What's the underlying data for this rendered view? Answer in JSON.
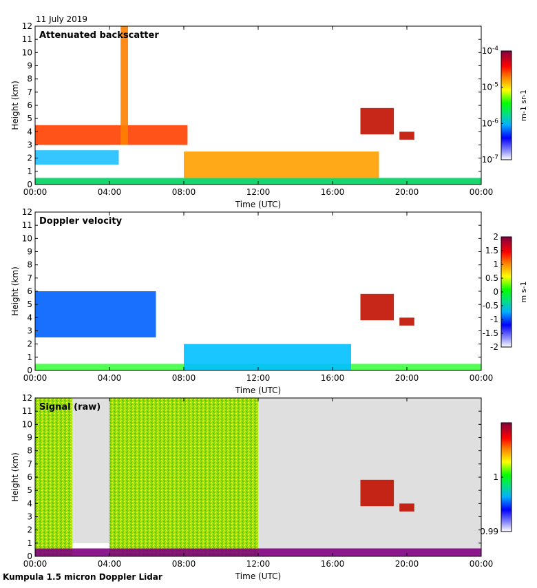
{
  "date_label": "11 July 2019",
  "footer_label": "Kumpula 1.5 micron Doppler Lidar",
  "colors": {
    "frame": "#000000",
    "no_signal_fill": "#dcdcdc",
    "low_signal": "#800080"
  },
  "chart_data": [
    {
      "type": "heatmap",
      "title": "Attenuated backscatter",
      "xlabel": "Time (UTC)",
      "ylabel": "Height (km)",
      "x_ticks": [
        "00:00",
        "04:00",
        "08:00",
        "12:00",
        "16:00",
        "20:00",
        "00:00"
      ],
      "xlim_hours": [
        0,
        24
      ],
      "y_ticks": [
        0,
        1,
        2,
        3,
        4,
        5,
        6,
        7,
        8,
        9,
        10,
        11,
        12
      ],
      "ylim": [
        0,
        12
      ],
      "scale": "log",
      "colorbar": {
        "unit": "m-1 sr-1",
        "ticks": [
          {
            "label": "10",
            "exp": "-4",
            "value": 0.0001
          },
          {
            "label": "10",
            "exp": "-5",
            "value": 1e-05
          },
          {
            "label": "10",
            "exp": "-6",
            "value": 1e-06
          },
          {
            "label": "10",
            "exp": "-7",
            "value": 1e-07
          }
        ],
        "range": [
          1e-07,
          0.0001
        ]
      },
      "features": [
        {
          "feature": "boundary layer",
          "t_start": 0,
          "t_end": 24,
          "h_bottom": 0,
          "h_top": 0.5
        },
        {
          "feature": "aerosol layer",
          "t_start": 0,
          "t_end": 4.5,
          "h_bottom": 1.5,
          "h_top": 2.6
        },
        {
          "feature": "elevated layer",
          "t_start": 0,
          "t_end": 8.2,
          "h_bottom": 3.0,
          "h_top": 4.5
        },
        {
          "feature": "convective plumes",
          "t_start": 8,
          "t_end": 18.5,
          "h_bottom": 0.5,
          "h_top": 2.5
        },
        {
          "feature": "cloud",
          "t_start": 17.5,
          "t_end": 19.3,
          "h_bottom": 3.8,
          "h_top": 5.8
        },
        {
          "feature": "cloud",
          "t_start": 19.6,
          "t_end": 20.4,
          "h_bottom": 3.4,
          "h_top": 4.0
        },
        {
          "feature": "high column",
          "t_start": 4.6,
          "t_end": 5.0,
          "h_bottom": 3.0,
          "h_top": 12.0
        }
      ]
    },
    {
      "type": "heatmap",
      "title": "Doppler velocity",
      "xlabel": "Time (UTC)",
      "ylabel": "Height (km)",
      "x_ticks": [
        "00:00",
        "04:00",
        "08:00",
        "12:00",
        "16:00",
        "20:00",
        "00:00"
      ],
      "xlim_hours": [
        0,
        24
      ],
      "y_ticks": [
        0,
        1,
        2,
        3,
        4,
        5,
        6,
        7,
        8,
        9,
        10,
        11,
        12
      ],
      "ylim": [
        0,
        12
      ],
      "colorbar": {
        "unit": "m s-1",
        "ticks": [
          "2",
          "1.5",
          "1",
          "0.5",
          "0",
          "-0.5",
          "-1",
          "-1.5",
          "-2"
        ],
        "range": [
          -2,
          2
        ]
      },
      "features": [
        {
          "feature": "near-zero layer",
          "t_start": 0,
          "t_end": 24,
          "h_bottom": 0,
          "h_top": 0.5
        },
        {
          "feature": "downdrafts",
          "t_start": 0,
          "t_end": 6.5,
          "h_bottom": 2.5,
          "h_top": 6.0
        },
        {
          "feature": "convective mixing",
          "t_start": 8,
          "t_end": 17,
          "h_bottom": 0,
          "h_top": 2.0
        },
        {
          "feature": "cloud",
          "t_start": 17.5,
          "t_end": 19.3,
          "h_bottom": 3.8,
          "h_top": 5.8
        },
        {
          "feature": "cloud",
          "t_start": 19.6,
          "t_end": 20.4,
          "h_bottom": 3.4,
          "h_top": 4.0
        }
      ]
    },
    {
      "type": "heatmap",
      "title": "Signal (raw)",
      "xlabel": "Time (UTC)",
      "ylabel": "Height (km)",
      "x_ticks": [
        "00:00",
        "04:00",
        "08:00",
        "12:00",
        "16:00",
        "20:00",
        "00:00"
      ],
      "xlim_hours": [
        0,
        24
      ],
      "y_ticks": [
        0,
        1,
        2,
        3,
        4,
        5,
        6,
        7,
        8,
        9,
        10,
        11,
        12
      ],
      "ylim": [
        0,
        12
      ],
      "colorbar": {
        "unit": "",
        "ticks": [
          "1",
          "0.99"
        ],
        "range": [
          0.99,
          1.01
        ]
      },
      "features": [
        {
          "feature": "noisy signal",
          "t_start": 0,
          "t_end": 2,
          "h_bottom": 0,
          "h_top": 12
        },
        {
          "feature": "no data",
          "t_start": 2,
          "t_end": 4,
          "h_bottom": 1,
          "h_top": 12
        },
        {
          "feature": "noisy signal",
          "t_start": 4,
          "t_end": 12,
          "h_bottom": 0,
          "h_top": 12
        },
        {
          "feature": "no data",
          "t_start": 12,
          "t_end": 24,
          "h_bottom": 0.5,
          "h_top": 12
        },
        {
          "feature": "strong return",
          "t_start": 0,
          "t_end": 24,
          "h_bottom": 0,
          "h_top": 0.6
        },
        {
          "feature": "cloud",
          "t_start": 17.5,
          "t_end": 19.3,
          "h_bottom": 3.8,
          "h_top": 5.8
        },
        {
          "feature": "cloud",
          "t_start": 19.6,
          "t_end": 20.4,
          "h_bottom": 3.4,
          "h_top": 4.0
        }
      ]
    }
  ]
}
